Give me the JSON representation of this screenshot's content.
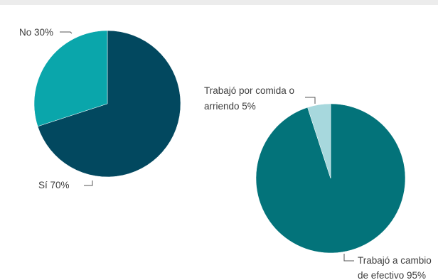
{
  "chart_data": [
    {
      "type": "pie",
      "slices": [
        {
          "label": "Sí",
          "value": 70,
          "display": "Sí 70%",
          "color": "#02485f"
        },
        {
          "label": "No",
          "value": 30,
          "display": "No 30%",
          "color": "#0aa6ab"
        }
      ]
    },
    {
      "type": "pie",
      "slices": [
        {
          "label": "Trabajó a cambio de efectivo",
          "value": 95,
          "display_lines": [
            "Trabajó a cambio",
            "de efectivo 95%"
          ],
          "color": "#03737a"
        },
        {
          "label": "Trabajó por comida o arriendo",
          "value": 5,
          "display_lines": [
            "Trabajó por comida o",
            "arriendo 5%"
          ],
          "color": "#a7d8dd"
        }
      ]
    }
  ]
}
